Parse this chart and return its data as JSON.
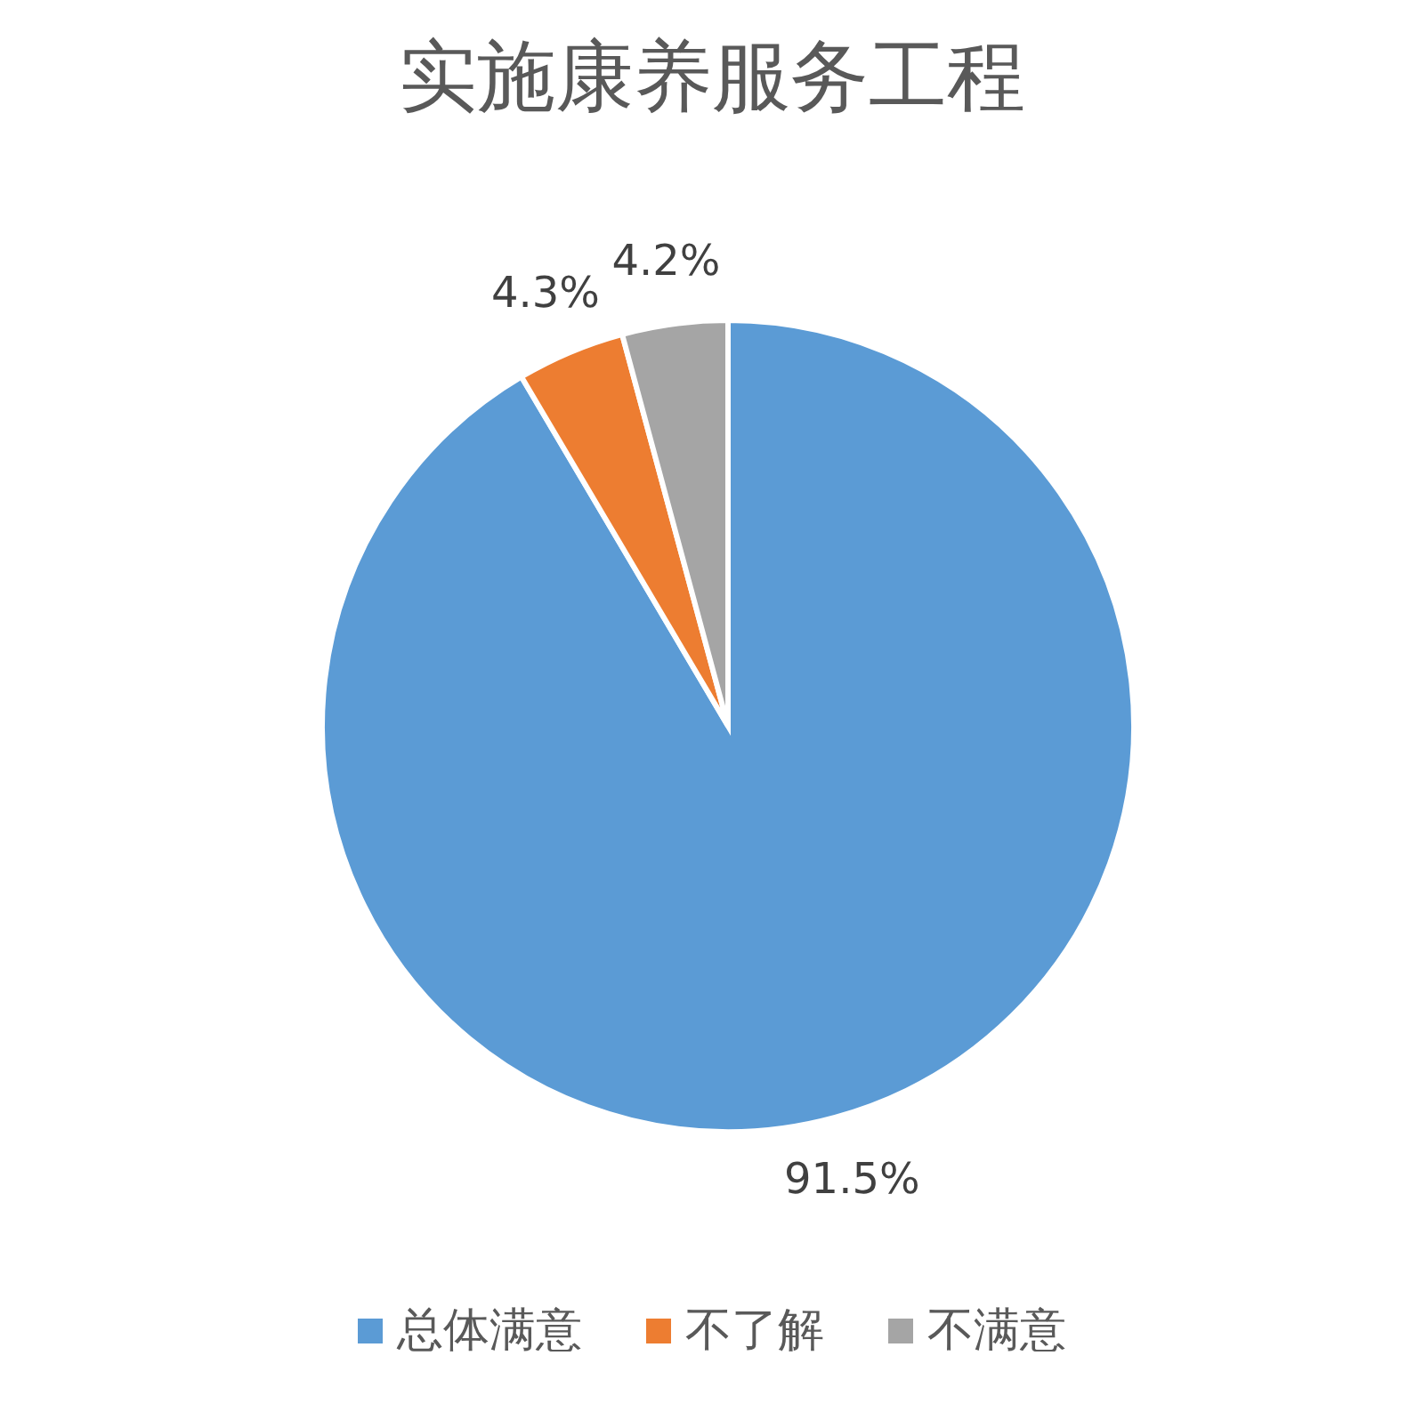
{
  "chart_data": {
    "type": "pie",
    "title": "实施康养服务工程",
    "categories": [
      "总体满意",
      "不了解",
      "不满意"
    ],
    "values": [
      91.5,
      4.3,
      4.2
    ],
    "colors": [
      "#5b9bd5",
      "#ed7d31",
      "#a5a5a5"
    ],
    "value_labels": [
      "91.5%",
      "4.3%",
      "4.2%"
    ],
    "legend": "bottom"
  }
}
